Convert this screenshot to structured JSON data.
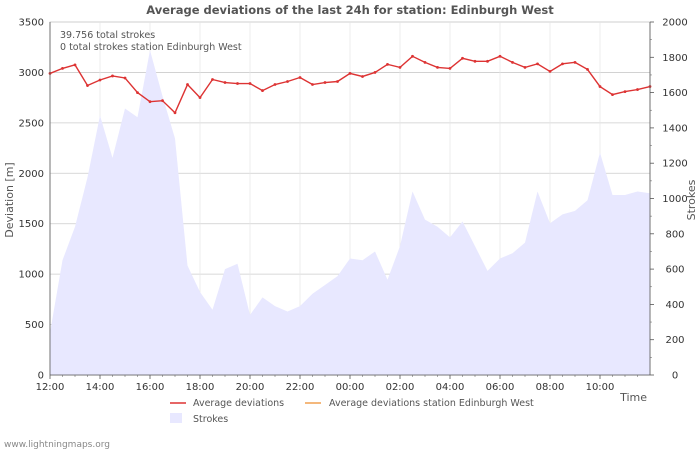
{
  "chart_data": {
    "type": "line",
    "title": "Average deviations of the last 24h for station: Edinburgh West",
    "info_lines": [
      "39.756 total strokes",
      "0 total strokes station Edinburgh West"
    ],
    "ylabel_left": "Deviation  [m]",
    "ylabel_right": "Strokes",
    "xlabel": "Time",
    "footer": "www.lightningmaps.org",
    "ylim_left": [
      0,
      3500
    ],
    "ylim_right": [
      0,
      2000
    ],
    "yticks_left": [
      0,
      500,
      1000,
      1500,
      2000,
      2500,
      3000,
      3500
    ],
    "yticks_right": [
      0,
      200,
      400,
      600,
      800,
      1000,
      1200,
      1400,
      1600,
      1800,
      2000
    ],
    "x_hours_range": [
      0,
      24
    ],
    "x_ticks": [
      {
        "h": 0,
        "label": "12:00"
      },
      {
        "h": 2,
        "label": "14:00"
      },
      {
        "h": 4,
        "label": "16:00"
      },
      {
        "h": 6,
        "label": "18:00"
      },
      {
        "h": 8,
        "label": "20:00"
      },
      {
        "h": 10,
        "label": "22:00"
      },
      {
        "h": 12,
        "label": "00:00"
      },
      {
        "h": 14,
        "label": "02:00"
      },
      {
        "h": 16,
        "label": "04:00"
      },
      {
        "h": 18,
        "label": "06:00"
      },
      {
        "h": 20,
        "label": "08:00"
      },
      {
        "h": 22,
        "label": "10:00"
      }
    ],
    "series": [
      {
        "name": "Average deviations",
        "axis": "left",
        "color": "#dd3333",
        "x": [
          0,
          0.5,
          1,
          1.5,
          2,
          2.5,
          3,
          3.5,
          4,
          4.5,
          5,
          5.5,
          6,
          6.5,
          7,
          7.5,
          8,
          8.5,
          9,
          9.5,
          10,
          10.5,
          11,
          11.5,
          12,
          12.5,
          13,
          13.5,
          14,
          14.5,
          15,
          15.5,
          16,
          16.5,
          17,
          17.5,
          18,
          18.5,
          19,
          19.5,
          20,
          20.5,
          21,
          21.5,
          22,
          22.5,
          23,
          23.5,
          24
        ],
        "values": [
          2990,
          3040,
          3075,
          2870,
          2925,
          2965,
          2945,
          2800,
          2710,
          2720,
          2600,
          2880,
          2750,
          2930,
          2900,
          2890,
          2890,
          2820,
          2880,
          2910,
          2950,
          2880,
          2900,
          2910,
          2990,
          2960,
          3000,
          3080,
          3050,
          3160,
          3100,
          3050,
          3040,
          3140,
          3110,
          3110,
          3160,
          3100,
          3050,
          3085,
          3010,
          3085,
          3100,
          3030,
          2860,
          2780,
          2810,
          2830,
          2860
        ]
      },
      {
        "name": "Average deviations station Edinburgh West",
        "axis": "left",
        "color": "#f0a050",
        "x": [],
        "values": []
      },
      {
        "name": "Strokes",
        "axis": "right",
        "type": "area",
        "color": "#e8e8ff",
        "x": [
          0,
          0.5,
          1,
          1.5,
          2,
          2.5,
          3,
          3.5,
          4,
          4.5,
          5,
          5.5,
          6,
          6.5,
          7,
          7.5,
          8,
          8.5,
          9,
          9.5,
          10,
          10.5,
          11,
          11.5,
          12,
          12.5,
          13,
          13.5,
          14,
          14.5,
          15,
          15.5,
          16,
          16.5,
          17,
          17.5,
          18,
          18.5,
          19,
          19.5,
          20,
          20.5,
          21,
          21.5,
          22,
          22.5,
          23,
          23.5,
          24
        ],
        "values": [
          240,
          650,
          840,
          1120,
          1470,
          1230,
          1510,
          1460,
          1840,
          1580,
          1340,
          620,
          470,
          370,
          600,
          630,
          340,
          440,
          390,
          360,
          390,
          460,
          510,
          560,
          660,
          650,
          700,
          540,
          730,
          1040,
          880,
          840,
          780,
          870,
          730,
          590,
          660,
          690,
          750,
          1040,
          860,
          910,
          930,
          990,
          1260,
          1020,
          1020,
          1040,
          1030
        ]
      }
    ]
  }
}
